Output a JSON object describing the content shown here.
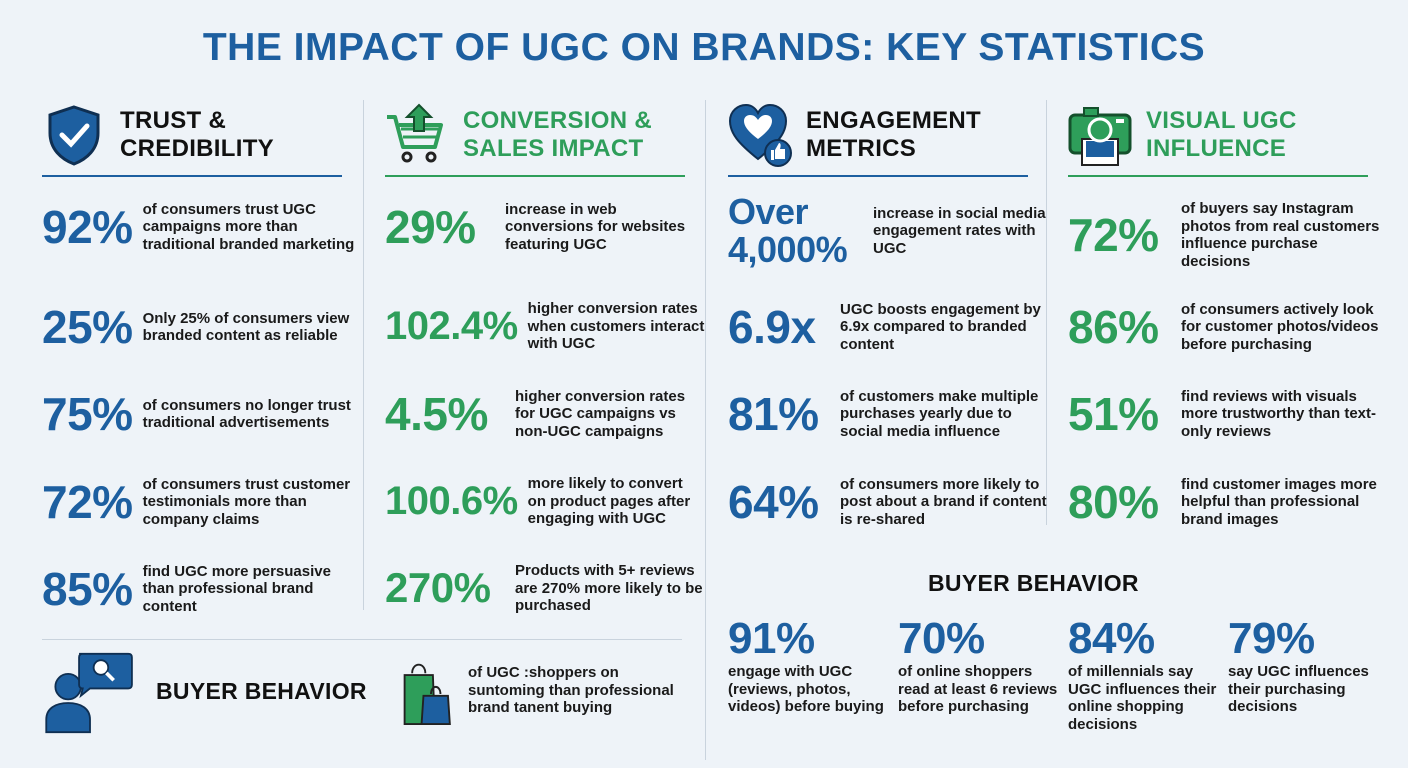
{
  "title": "THE IMPACT OF UGC ON BRANDS: KEY STATISTICS",
  "colors": {
    "blue": "#1d5fa0",
    "green": "#2e9e5a",
    "background": "#eef3f8"
  },
  "columns": [
    {
      "title": "TRUST & CREDIBILITY",
      "icon": "shield-check-icon",
      "stats": [
        {
          "value": "92%",
          "text": "of consumers trust UGC campaigns more than traditional branded marketing"
        },
        {
          "value": "25%",
          "text": "Only 25% of consumers view branded content as reliable"
        },
        {
          "value": "75%",
          "text": "of consumers no longer trust traditional advertisements"
        },
        {
          "value": "72%",
          "text": "of consumers trust customer testimonials more than company claims"
        },
        {
          "value": "85%",
          "text": "find UGC more persuasive than professional brand content"
        }
      ]
    },
    {
      "title": "CONVERSION & SALES IMPACT",
      "icon": "cart-arrow-up-icon",
      "stats": [
        {
          "value": "29%",
          "text": "increase in web conversions for websites featuring UGC"
        },
        {
          "value": "102.4%",
          "text": "higher conversion rates when customers interact with UGC"
        },
        {
          "value": "4.5%",
          "text": "higher conversion rates for UGC campaigns vs non-UGC campaigns"
        },
        {
          "value": "100.6%",
          "text": "more likely to convert on product pages after engaging with UGC"
        },
        {
          "value": "270%",
          "text": "Products with 5+ reviews are 270% more likely to be purchased"
        }
      ]
    },
    {
      "title": "ENGAGEMENT METRICS",
      "icon": "heart-thumbs-up-icon",
      "stats": [
        {
          "value": "Over 4,000%",
          "text": "increase in social media engagement rates with UGC"
        },
        {
          "value": "6.9x",
          "text": "UGC boosts engagement by 6.9x compared to branded content"
        },
        {
          "value": "81%",
          "text": "of customers make multiple purchases yearly due to social media influence"
        },
        {
          "value": "64%",
          "text": "of consumers more likely to post about a brand if content is re-shared"
        }
      ]
    },
    {
      "title": "VISUAL UGC INFLUENCE",
      "icon": "camera-photo-icon",
      "stats": [
        {
          "value": "72%",
          "text": "of buyers say Instagram photos from real customers influence purchase decisions"
        },
        {
          "value": "86%",
          "text": "of consumers actively look for customer photos/videos before purchasing"
        },
        {
          "value": "51%",
          "text": "find reviews with visuals more trustworthy than text-only reviews"
        },
        {
          "value": "80%",
          "text": "find customer images more helpful than professional brand images"
        }
      ]
    }
  ],
  "buyer_left": {
    "title": "BUYER BEHAVIOR",
    "text": "of UGC :shoppers on suntoming than professional brand tanent buying"
  },
  "buyer_right": {
    "title": "BUYER BEHAVIOR",
    "stats": [
      {
        "value": "91%",
        "text": "engage with UGC (reviews, photos, videos) before buying"
      },
      {
        "value": "70%",
        "text": "of online shoppers read at least 6 reviews before purchasing"
      },
      {
        "value": "84%",
        "text": "of millennials say UGC influences their online shopping decisions"
      },
      {
        "value": "79%",
        "text": "say UGC influences their purchasing decisions"
      }
    ]
  }
}
